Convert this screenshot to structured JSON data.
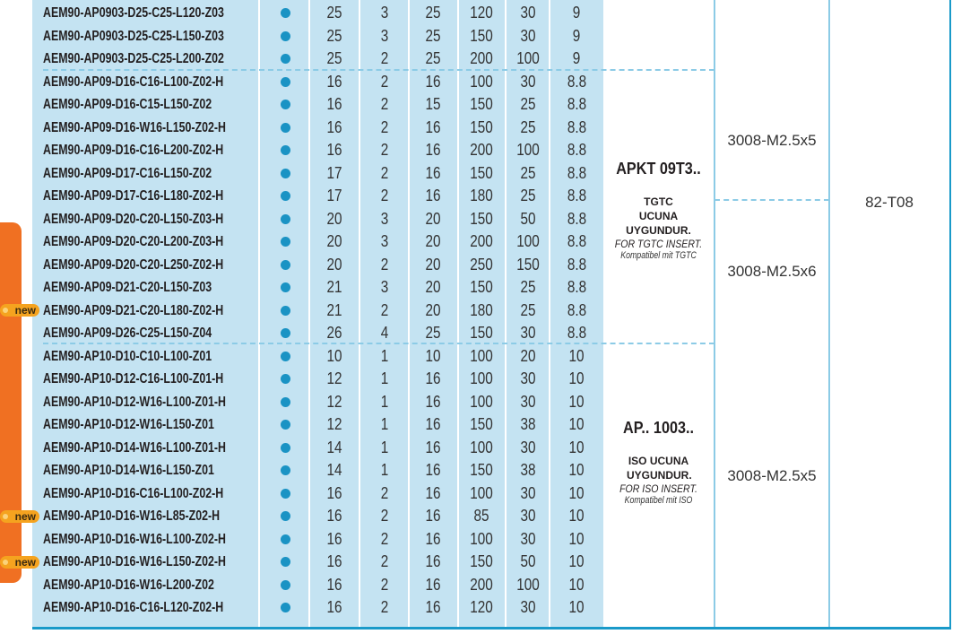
{
  "colors": {
    "row_bg": "#c4e3f2",
    "dot": "#1a93c4",
    "side_tab": "#f07022",
    "new_badge": "#f5a31f",
    "border": "#1a9ac9"
  },
  "badge_label": "new",
  "rows": [
    {
      "code": "AEM90-AP0903-D25-C25-L120-Z03",
      "vals": [
        "25",
        "3",
        "25",
        "120",
        "30",
        "9"
      ],
      "new": false
    },
    {
      "code": "AEM90-AP0903-D25-C25-L150-Z03",
      "vals": [
        "25",
        "3",
        "25",
        "150",
        "30",
        "9"
      ],
      "new": false
    },
    {
      "code": "AEM90-AP0903-D25-C25-L200-Z02",
      "vals": [
        "25",
        "2",
        "25",
        "200",
        "100",
        "9"
      ],
      "new": false
    },
    {
      "code": "AEM90-AP09-D16-C16-L100-Z02-H",
      "vals": [
        "16",
        "2",
        "16",
        "100",
        "30",
        "8.8"
      ],
      "new": false
    },
    {
      "code": "AEM90-AP09-D16-C15-L150-Z02",
      "vals": [
        "16",
        "2",
        "15",
        "150",
        "25",
        "8.8"
      ],
      "new": false
    },
    {
      "code": "AEM90-AP09-D16-W16-L150-Z02-H",
      "vals": [
        "16",
        "2",
        "16",
        "150",
        "25",
        "8.8"
      ],
      "new": false
    },
    {
      "code": "AEM90-AP09-D16-C16-L200-Z02-H",
      "vals": [
        "16",
        "2",
        "16",
        "200",
        "100",
        "8.8"
      ],
      "new": false
    },
    {
      "code": "AEM90-AP09-D17-C16-L150-Z02",
      "vals": [
        "17",
        "2",
        "16",
        "150",
        "25",
        "8.8"
      ],
      "new": false
    },
    {
      "code": "AEM90-AP09-D17-C16-L180-Z02-H",
      "vals": [
        "17",
        "2",
        "16",
        "180",
        "25",
        "8.8"
      ],
      "new": false
    },
    {
      "code": "AEM90-AP09-D20-C20-L150-Z03-H",
      "vals": [
        "20",
        "3",
        "20",
        "150",
        "50",
        "8.8"
      ],
      "new": false
    },
    {
      "code": "AEM90-AP09-D20-C20-L200-Z03-H",
      "vals": [
        "20",
        "3",
        "20",
        "200",
        "100",
        "8.8"
      ],
      "new": false
    },
    {
      "code": "AEM90-AP09-D20-C20-L250-Z02-H",
      "vals": [
        "20",
        "2",
        "20",
        "250",
        "150",
        "8.8"
      ],
      "new": false
    },
    {
      "code": "AEM90-AP09-D21-C20-L150-Z03",
      "vals": [
        "21",
        "3",
        "20",
        "150",
        "25",
        "8.8"
      ],
      "new": false
    },
    {
      "code": "AEM90-AP09-D21-C20-L180-Z02-H",
      "vals": [
        "21",
        "2",
        "20",
        "180",
        "25",
        "8.8"
      ],
      "new": true
    },
    {
      "code": "AEM90-AP09-D26-C25-L150-Z04",
      "vals": [
        "26",
        "4",
        "25",
        "150",
        "30",
        "8.8"
      ],
      "new": false
    },
    {
      "code": "AEM90-AP10-D10-C10-L100-Z01",
      "vals": [
        "10",
        "1",
        "10",
        "100",
        "20",
        "10"
      ],
      "new": false
    },
    {
      "code": "AEM90-AP10-D12-C16-L100-Z01-H",
      "vals": [
        "12",
        "1",
        "16",
        "100",
        "30",
        "10"
      ],
      "new": false
    },
    {
      "code": "AEM90-AP10-D12-W16-L100-Z01-H",
      "vals": [
        "12",
        "1",
        "16",
        "100",
        "30",
        "10"
      ],
      "new": false
    },
    {
      "code": "AEM90-AP10-D12-W16-L150-Z01",
      "vals": [
        "12",
        "1",
        "16",
        "150",
        "38",
        "10"
      ],
      "new": false
    },
    {
      "code": "AEM90-AP10-D14-W16-L100-Z01-H",
      "vals": [
        "14",
        "1",
        "16",
        "100",
        "30",
        "10"
      ],
      "new": false
    },
    {
      "code": "AEM90-AP10-D14-W16-L150-Z01",
      "vals": [
        "14",
        "1",
        "16",
        "150",
        "38",
        "10"
      ],
      "new": false
    },
    {
      "code": "AEM90-AP10-D16-C16-L100-Z02-H",
      "vals": [
        "16",
        "2",
        "16",
        "100",
        "30",
        "10"
      ],
      "new": false
    },
    {
      "code": "AEM90-AP10-D16-W16-L85-Z02-H",
      "vals": [
        "16",
        "2",
        "16",
        "85",
        "30",
        "10"
      ],
      "new": true
    },
    {
      "code": "AEM90-AP10-D16-W16-L100-Z02-H",
      "vals": [
        "16",
        "2",
        "16",
        "100",
        "30",
        "10"
      ],
      "new": false
    },
    {
      "code": "AEM90-AP10-D16-W16-L150-Z02-H",
      "vals": [
        "16",
        "2",
        "16",
        "150",
        "50",
        "10"
      ],
      "new": true
    },
    {
      "code": "AEM90-AP10-D16-W16-L200-Z02",
      "vals": [
        "16",
        "2",
        "16",
        "200",
        "100",
        "10"
      ],
      "new": false
    },
    {
      "code": "AEM90-AP10-D16-C16-L120-Z02-H",
      "vals": [
        "16",
        "2",
        "16",
        "120",
        "30",
        "10"
      ],
      "new": false
    }
  ],
  "inserts": [
    {
      "code": "APKT 09T3..",
      "tr": "TGTC UCUNA UYGUNDUR.",
      "en": "FOR TGTC INSERT.",
      "de": "Kompatibel mit TGTC"
    },
    {
      "code": "AP.. 1003..",
      "tr": "ISO UCUNA UYGUNDUR.",
      "en": "FOR ISO INSERT.",
      "de": "Kompatibel mit ISO"
    }
  ],
  "screws": [
    "3008-M2.5x5",
    "3008-M2.5x6",
    "3008-M2.5x5"
  ],
  "key": "82-T08"
}
